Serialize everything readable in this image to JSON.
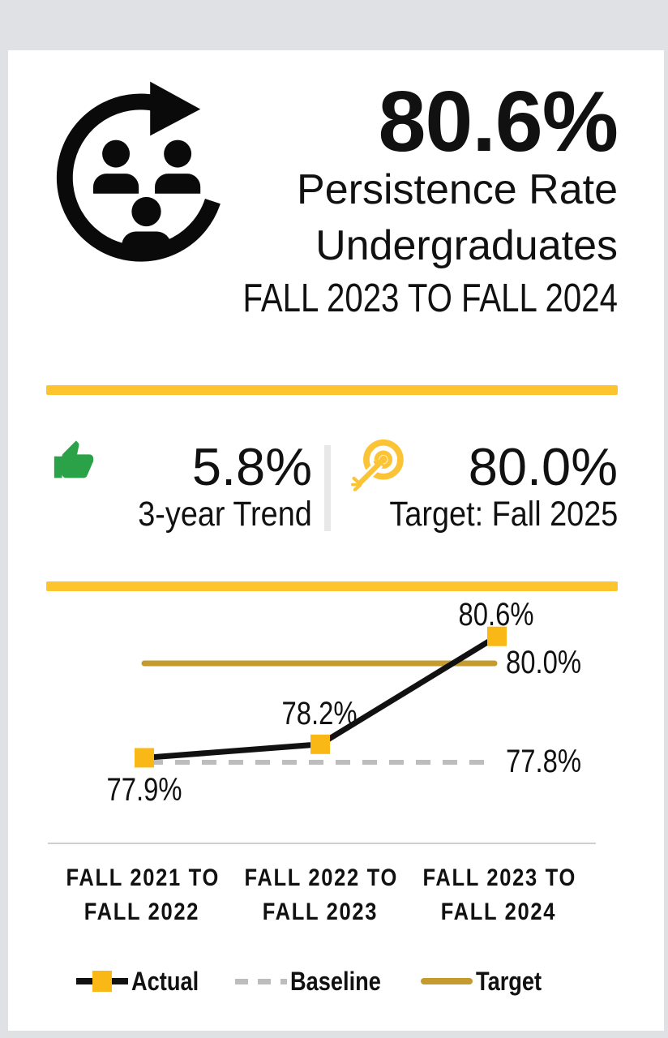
{
  "theme": {
    "page_bg": "#E0E1E4",
    "card_bg": "#FFFFFF",
    "accent": "#FDC42E",
    "marker_yellow": "#F9B815",
    "target_gold": "#C59B2F",
    "baseline_gray": "#BDBDBD",
    "line_black": "#111111",
    "trend_green": "#2CA248",
    "bullseye_gold": "#FBC437",
    "divider_gray": "#E8E8E8",
    "axis_gray": "#CFCFCF",
    "text": "#111111"
  },
  "header": {
    "icon": "persistence-cycle-icon",
    "value": "80.6%",
    "line1": "Persistence Rate",
    "line2": "Undergraduates",
    "line3": "FALL 2023 TO FALL 2024"
  },
  "stats": {
    "trend": {
      "icon": "thumbs-up-icon",
      "value": "5.8%",
      "label": "3-year Trend"
    },
    "target": {
      "icon": "bullseye-icon",
      "value": "80.0%",
      "label": "Target: Fall 2025"
    }
  },
  "chart_data": {
    "type": "line",
    "categories": [
      "FALL 2021 TO FALL 2022",
      "FALL 2022 TO FALL 2023",
      "FALL 2023 TO FALL 2024"
    ],
    "series": [
      {
        "name": "Actual",
        "values": [
          77.9,
          78.2,
          80.6
        ],
        "color": "#111111",
        "style": "solid",
        "marker": "square",
        "marker_color": "#F9B815"
      },
      {
        "name": "Baseline",
        "values": [
          77.8,
          77.8,
          77.8
        ],
        "color": "#BDBDBD",
        "style": "dashed",
        "marker": "none"
      },
      {
        "name": "Target",
        "values": [
          80.0,
          80.0,
          80.0
        ],
        "color": "#C59B2F",
        "style": "solid",
        "marker": "none"
      }
    ],
    "point_labels": [
      "77.9%",
      "78.2%",
      "80.6%"
    ],
    "line_labels": {
      "baseline": "77.8%",
      "target": "80.0%"
    },
    "ylim": [
      77.0,
      81.6
    ],
    "grid": false,
    "legend": [
      "Actual",
      "Baseline",
      "Target"
    ],
    "legend_position": "bottom"
  }
}
